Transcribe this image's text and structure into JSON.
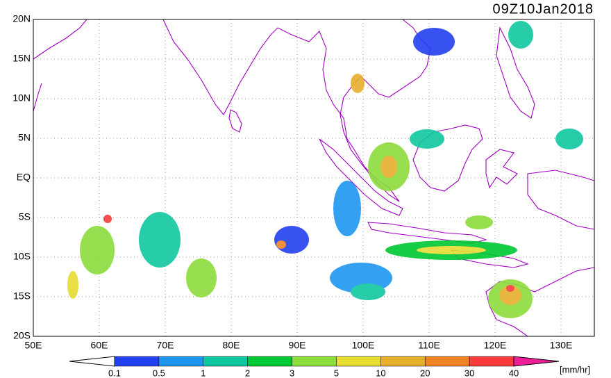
{
  "map": {
    "title": "09Z10Jan2018",
    "lat_labels": [
      "20N",
      "15N",
      "10N",
      "5N",
      "EQ",
      "5S",
      "10S",
      "15S",
      "20S"
    ],
    "lon_labels": [
      "50E",
      "60E",
      "70E",
      "80E",
      "90E",
      "100E",
      "110E",
      "120E",
      "130E"
    ],
    "colorbar": {
      "labels": [
        "0.1",
        "0.5",
        "1",
        "2",
        "3",
        "5",
        "10",
        "20",
        "30",
        "40"
      ],
      "unit": "[mm/hr]",
      "low_color": "#ffffff",
      "colors": [
        "#2340f0",
        "#1e96f0",
        "#10c8a0",
        "#00c832",
        "#8cdc3c",
        "#e6dc32",
        "#e6af2d",
        "#f08228",
        "#fa3c3c"
      ],
      "high_color": "#f01e96"
    }
  }
}
